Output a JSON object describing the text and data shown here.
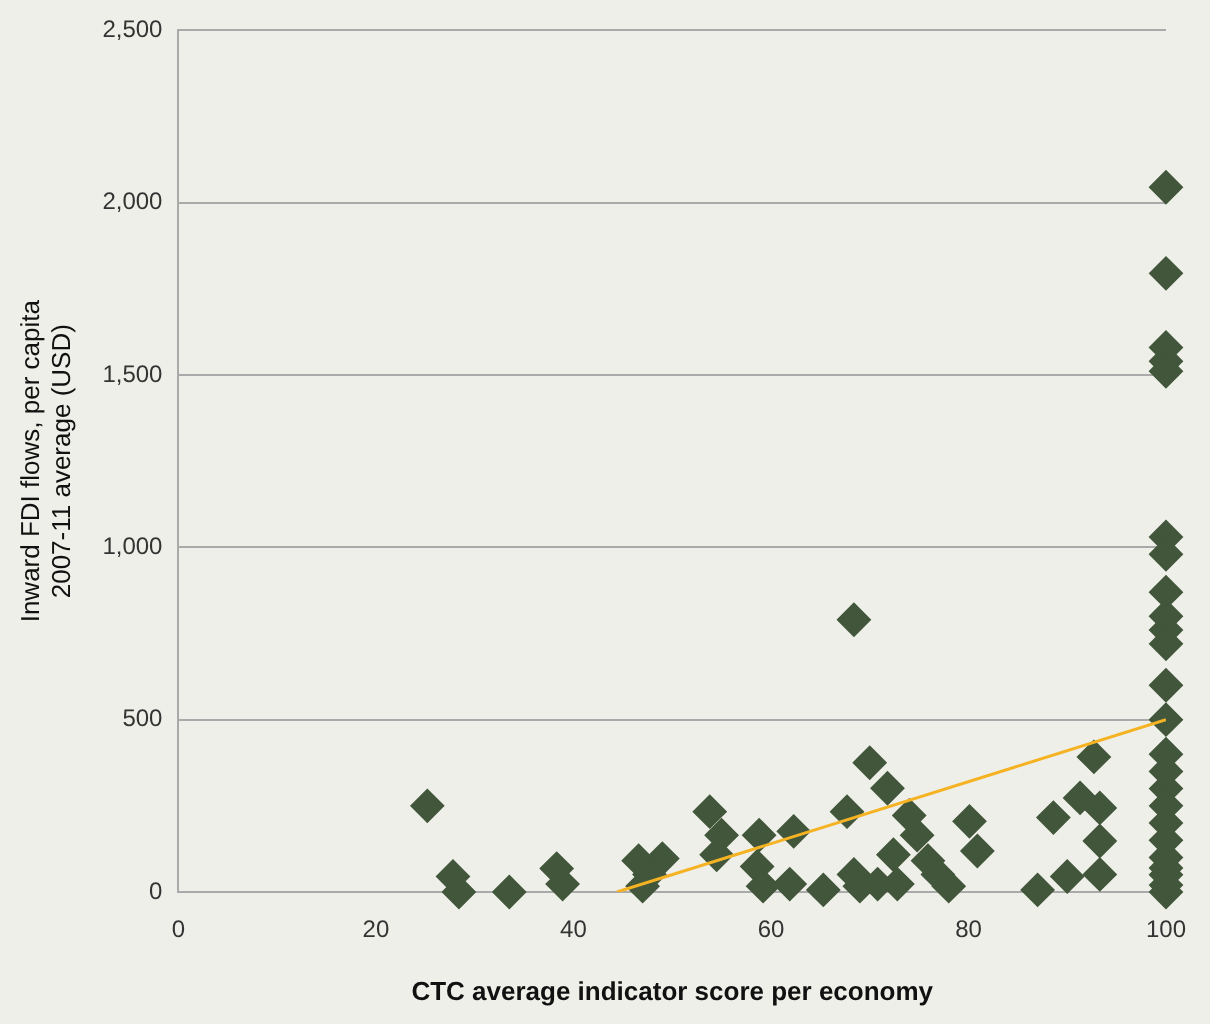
{
  "chart_data": {
    "type": "scatter",
    "xlabel": "CTC average indicator score per economy",
    "ylabel": "Inward FDI flows, per capita\n2007-11 average (USD)",
    "marker": "diamond",
    "grid": "y",
    "legend": false,
    "xlim": [
      0,
      100
    ],
    "xticks": [
      0,
      20,
      40,
      60,
      80,
      100
    ],
    "ylim": [
      0,
      2500
    ],
    "yticks": [
      0,
      500,
      {
        "value": 1000,
        "label": "1,000"
      },
      {
        "value": 1500,
        "label": "1,500"
      },
      {
        "value": 2000,
        "label": "2,000"
      },
      {
        "value": 2500,
        "label": "2,500"
      }
    ],
    "series": [
      {
        "color": "#41563a",
        "x": [
          25.2,
          27.8,
          28.4,
          33.5,
          38.3,
          38.9,
          46.6,
          49,
          47,
          47.7,
          53.8,
          55,
          54.5,
          58.8,
          58.6,
          59.2,
          62.3,
          61.9,
          65.3,
          68.4,
          70,
          67.7,
          71.8,
          68.4,
          69,
          70.8,
          72.8,
          72.4,
          74,
          74.8,
          75.9,
          76.9,
          78,
          80.1,
          80.9,
          87,
          88.6,
          90,
          91.3,
          92.7,
          93.3,
          93.3,
          93.3,
          100,
          100,
          100,
          100,
          100,
          100,
          100,
          100,
          100,
          100,
          100,
          100,
          100,
          100,
          100,
          100,
          100,
          100,
          100,
          100,
          100,
          100,
          100,
          100
        ],
        "values": [
          250,
          45,
          0,
          0,
          68,
          23,
          91,
          97,
          17,
          51,
          233,
          165,
          108,
          165,
          74,
          17,
          176,
          23,
          6,
          790,
          375,
          233,
          301,
          51,
          17,
          23,
          23,
          108,
          222,
          165,
          91,
          51,
          17,
          205,
          119,
          6,
          216,
          45,
          273,
          392,
          244,
          148,
          51,
          2045,
          1795,
          1580,
          1540,
          1511,
          1030,
          980,
          870,
          800,
          760,
          720,
          600,
          500,
          400,
          350,
          300,
          250,
          200,
          150,
          100,
          70,
          50,
          20,
          0
        ]
      },
      {
        "type": "line",
        "color": "#f5b324",
        "marker": "none",
        "x": [
          44.4,
          100
        ],
        "values": [
          0,
          500
        ]
      }
    ]
  }
}
